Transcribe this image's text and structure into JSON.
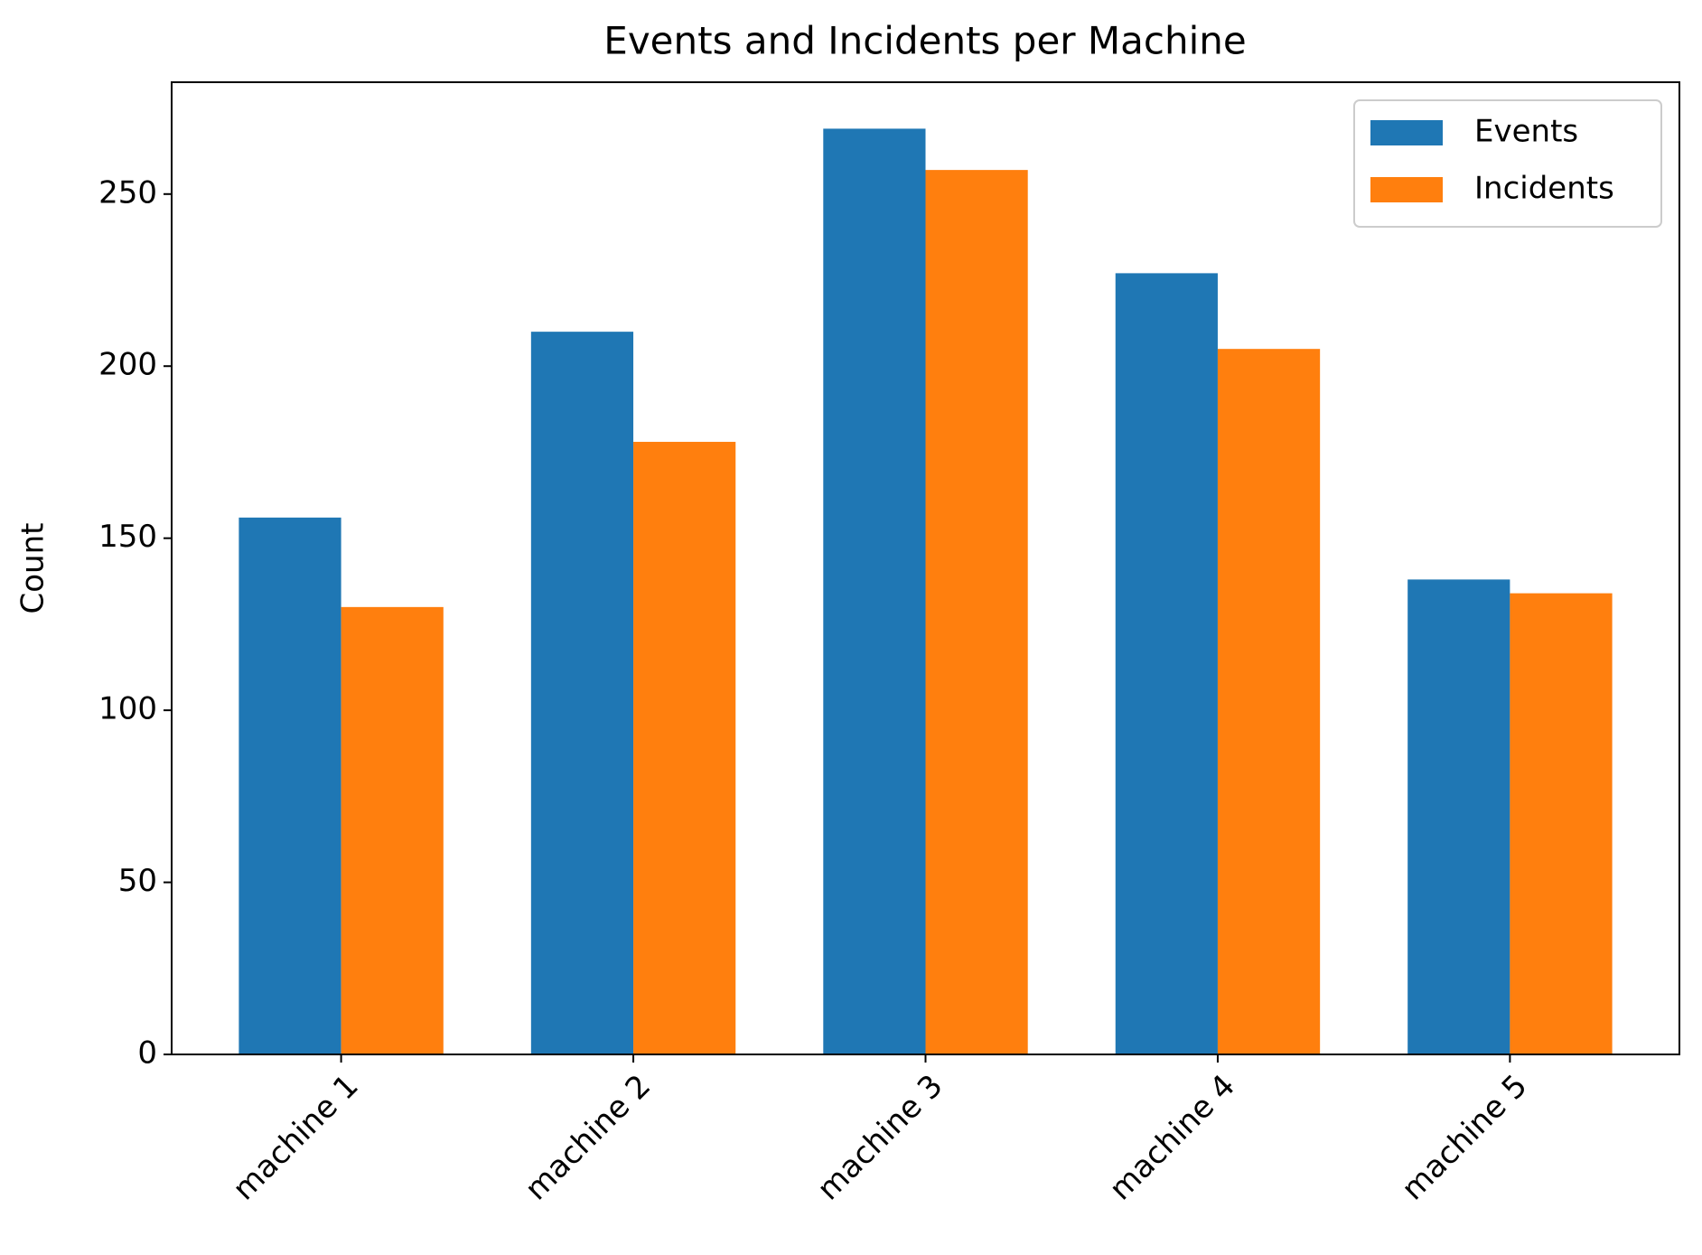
{
  "chart_data": {
    "type": "bar",
    "title": "Events and Incidents per Machine",
    "y_label": "Count",
    "categories": [
      "machine 1",
      "machine 2",
      "machine 3",
      "machine 4",
      "machine 5"
    ],
    "series": [
      {
        "name": "Events",
        "color": "#1f77b4",
        "values": [
          156,
          210,
          269,
          227,
          138
        ]
      },
      {
        "name": "Incidents",
        "color": "#ff7f0e",
        "values": [
          130,
          178,
          257,
          205,
          134
        ]
      }
    ],
    "ylim": [
      0,
      282.5
    ],
    "yticks": [
      0,
      50,
      100,
      150,
      200,
      250
    ],
    "grid": false,
    "legend": "upper right"
  }
}
